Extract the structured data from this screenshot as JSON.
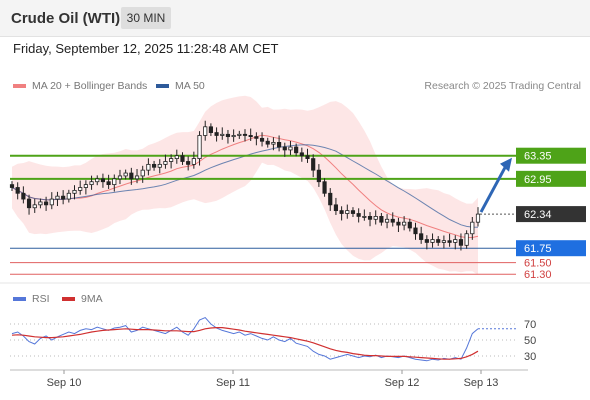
{
  "header": {
    "title": "Crude Oil (WTI)",
    "timeframe": "30 MIN"
  },
  "datetime": "Friday, September 12, 2025 11:28:48 AM CET",
  "legend": {
    "ma20_label": "MA 20 + Bollinger Bands",
    "ma50_label": "MA 50",
    "credit": "Research © 2025 Trading Central"
  },
  "rsi_legend": {
    "rsi_label": "RSI",
    "ma_label": "9MA"
  },
  "colors": {
    "bollinger": "#f08080",
    "ma50": "#2e5a9a",
    "green": "#4ea318",
    "current": "#333333",
    "blue": "#1f6fe0",
    "red": "#e06060",
    "rsi": "#5577d9",
    "rsi_ma": "#d03030"
  },
  "chart_data": [
    {
      "type": "candlestick",
      "x_ticks": [
        "Sep 10",
        "Sep 11",
        "Sep 12",
        "Sep 13"
      ],
      "ylim": [
        61.2,
        64.4
      ],
      "closes": [
        62.8,
        62.7,
        62.6,
        62.45,
        62.5,
        62.55,
        62.5,
        62.6,
        62.65,
        62.6,
        62.7,
        62.75,
        62.8,
        62.85,
        62.9,
        62.95,
        62.9,
        62.85,
        62.95,
        63.0,
        63.05,
        62.95,
        63.0,
        63.1,
        63.2,
        63.15,
        63.2,
        63.25,
        63.3,
        63.35,
        63.25,
        63.2,
        63.3,
        63.7,
        63.85,
        63.75,
        63.7,
        63.72,
        63.68,
        63.7,
        63.72,
        63.7,
        63.68,
        63.65,
        63.6,
        63.55,
        63.58,
        63.5,
        63.45,
        63.5,
        63.4,
        63.35,
        63.3,
        63.1,
        62.9,
        62.7,
        62.5,
        62.4,
        62.35,
        62.4,
        62.35,
        62.3,
        62.3,
        62.25,
        62.3,
        62.2,
        62.25,
        62.2,
        62.15,
        62.2,
        62.1,
        62.0,
        61.9,
        61.85,
        61.9,
        61.85,
        61.88,
        61.85,
        61.9,
        61.8,
        62.0,
        62.2,
        62.34
      ],
      "current": 62.34,
      "levels": [
        {
          "price": 63.35,
          "label": "63.35",
          "type": "resistance"
        },
        {
          "price": 62.95,
          "label": "62.95",
          "type": "resistance"
        },
        {
          "price": 62.34,
          "label": "62.34",
          "type": "current"
        },
        {
          "price": 61.75,
          "label": "61.75",
          "type": "pivot"
        },
        {
          "price": 61.5,
          "label": "61.50",
          "type": "support"
        },
        {
          "price": 61.3,
          "label": "61.30",
          "type": "support"
        }
      ],
      "target": 63.35
    },
    {
      "type": "line",
      "name": "RSI",
      "ylim": [
        15,
        85
      ],
      "ticks": [
        "70",
        "50",
        "30"
      ],
      "rsi": [
        58,
        60,
        55,
        48,
        45,
        52,
        55,
        50,
        54,
        57,
        60,
        58,
        62,
        64,
        63,
        66,
        64,
        62,
        65,
        66,
        68,
        60,
        62,
        66,
        64,
        62,
        60,
        58,
        62,
        66,
        60,
        56,
        64,
        75,
        78,
        70,
        65,
        62,
        60,
        58,
        60,
        56,
        58,
        55,
        52,
        50,
        54,
        50,
        48,
        52,
        46,
        44,
        42,
        36,
        32,
        30,
        26,
        28,
        30,
        32,
        30,
        28,
        30,
        29,
        31,
        28,
        30,
        29,
        28,
        30,
        28,
        26,
        25,
        24,
        26,
        25,
        27,
        26,
        28,
        26,
        40,
        58,
        64
      ],
      "ma9": [
        56,
        56.5,
        56,
        55,
        54,
        53.5,
        53,
        53,
        53.5,
        54,
        55,
        56,
        57,
        58.5,
        60,
        61,
        62,
        62.5,
        63,
        63.5,
        64,
        63.5,
        63,
        63,
        63,
        62.5,
        62,
        61.5,
        61.5,
        61.5,
        61,
        60.5,
        60.5,
        62,
        64,
        65,
        65.5,
        65.5,
        64.5,
        63.5,
        62.5,
        61,
        60,
        59,
        58,
        57,
        56,
        55,
        54,
        53,
        51.5,
        50,
        48.5,
        46.5,
        44,
        41.5,
        39,
        37,
        35.5,
        34.5,
        33,
        32,
        31,
        30.5,
        30.5,
        30,
        29.5,
        29.5,
        29.5,
        29.5,
        29,
        28.5,
        28,
        27.5,
        27,
        26.5,
        26,
        26,
        26.5,
        27,
        29,
        32,
        36
      ]
    }
  ]
}
